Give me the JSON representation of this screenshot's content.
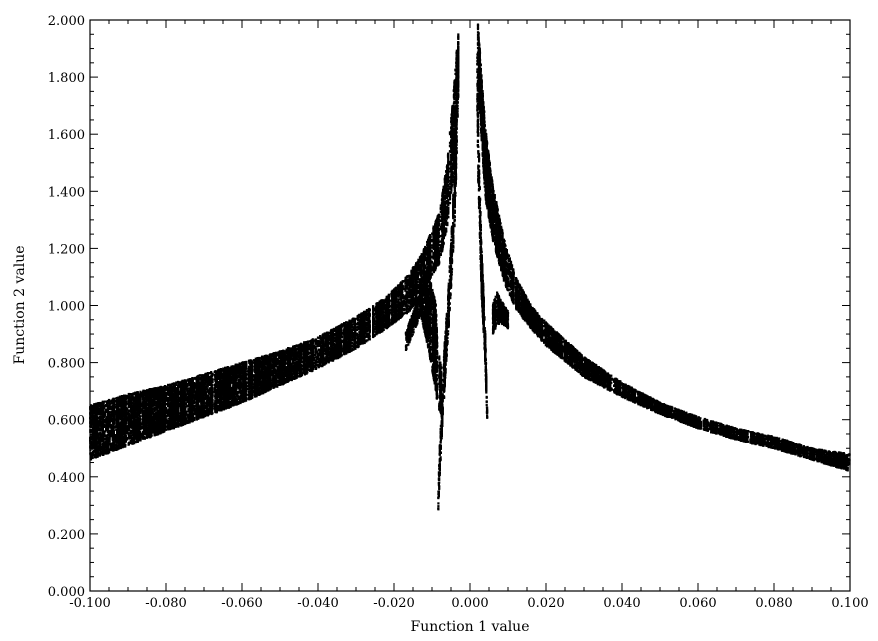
{
  "chart_data": {
    "type": "scatter",
    "title": "",
    "xlabel": "Function 1 value",
    "ylabel": "Function 2 value",
    "xlim": [
      -0.1,
      0.1
    ],
    "ylim": [
      0.0,
      2.0
    ],
    "grid": false,
    "legend": "none",
    "marker_color": "#000000",
    "x_ticks": [
      "-0.100",
      "-0.080",
      "-0.060",
      "-0.040",
      "-0.020",
      "0.000",
      "0.020",
      "0.040",
      "0.060",
      "0.080",
      "0.100"
    ],
    "y_ticks": [
      "0.000",
      "0.200",
      "0.400",
      "0.600",
      "0.800",
      "1.000",
      "1.200",
      "1.400",
      "1.600",
      "1.800",
      "2.000"
    ],
    "series": [
      {
        "band": "main-left",
        "x": [
          -0.1,
          -0.09,
          -0.08,
          -0.07,
          -0.06,
          -0.05,
          -0.04,
          -0.03,
          -0.022,
          -0.016,
          -0.012,
          -0.008,
          -0.006,
          -0.004,
          -0.003
        ],
        "y_upper": [
          0.65,
          0.69,
          0.72,
          0.76,
          0.8,
          0.84,
          0.89,
          0.96,
          1.03,
          1.11,
          1.2,
          1.33,
          1.5,
          1.8,
          2.0
        ],
        "y_lower": [
          0.46,
          0.51,
          0.56,
          0.61,
          0.66,
          0.72,
          0.78,
          0.85,
          0.92,
          0.98,
          1.06,
          1.15,
          1.28,
          1.5,
          1.8
        ]
      },
      {
        "band": "main-right",
        "x": [
          0.002,
          0.004,
          0.006,
          0.009,
          0.012,
          0.016,
          0.02,
          0.03,
          0.04,
          0.05,
          0.06,
          0.07,
          0.08,
          0.09,
          0.1
        ],
        "y_upper": [
          2.0,
          1.62,
          1.42,
          1.23,
          1.1,
          1.0,
          0.94,
          0.82,
          0.73,
          0.66,
          0.61,
          0.57,
          0.54,
          0.5,
          0.48
        ],
        "y_lower": [
          1.8,
          1.38,
          1.23,
          1.08,
          0.99,
          0.92,
          0.86,
          0.75,
          0.68,
          0.62,
          0.57,
          0.53,
          0.5,
          0.46,
          0.42
        ]
      },
      {
        "band": "inner-left-spike",
        "x": [
          -0.0085,
          -0.008,
          -0.007,
          -0.0055,
          -0.004,
          -0.003
        ],
        "y_upper": [
          0.3,
          0.5,
          0.8,
          1.1,
          1.5,
          2.0
        ],
        "y_lower": [
          0.22,
          0.4,
          0.65,
          0.95,
          1.3,
          1.8
        ]
      },
      {
        "band": "inner-right-spike",
        "x": [
          0.0018,
          0.0022,
          0.003,
          0.004,
          0.0045
        ],
        "y_upper": [
          2.0,
          1.6,
          1.2,
          0.9,
          0.62
        ],
        "y_lower": [
          1.8,
          1.4,
          1.05,
          0.8,
          0.6
        ]
      },
      {
        "band": "left-streaks",
        "x": [
          -0.017,
          -0.015,
          -0.013,
          -0.011,
          -0.009,
          -0.0085,
          -0.0075
        ],
        "y_upper": [
          0.9,
          0.98,
          1.06,
          1.13,
          1.0,
          0.85,
          0.78
        ],
        "y_lower": [
          0.84,
          0.9,
          0.97,
          0.85,
          0.7,
          0.64,
          0.62
        ]
      },
      {
        "band": "right-streaks",
        "x": [
          0.006,
          0.007,
          0.008,
          0.009,
          0.01
        ],
        "y_upper": [
          1.0,
          1.05,
          1.02,
          1.0,
          0.98
        ],
        "y_lower": [
          0.9,
          0.93,
          0.94,
          0.93,
          0.92
        ]
      }
    ]
  }
}
